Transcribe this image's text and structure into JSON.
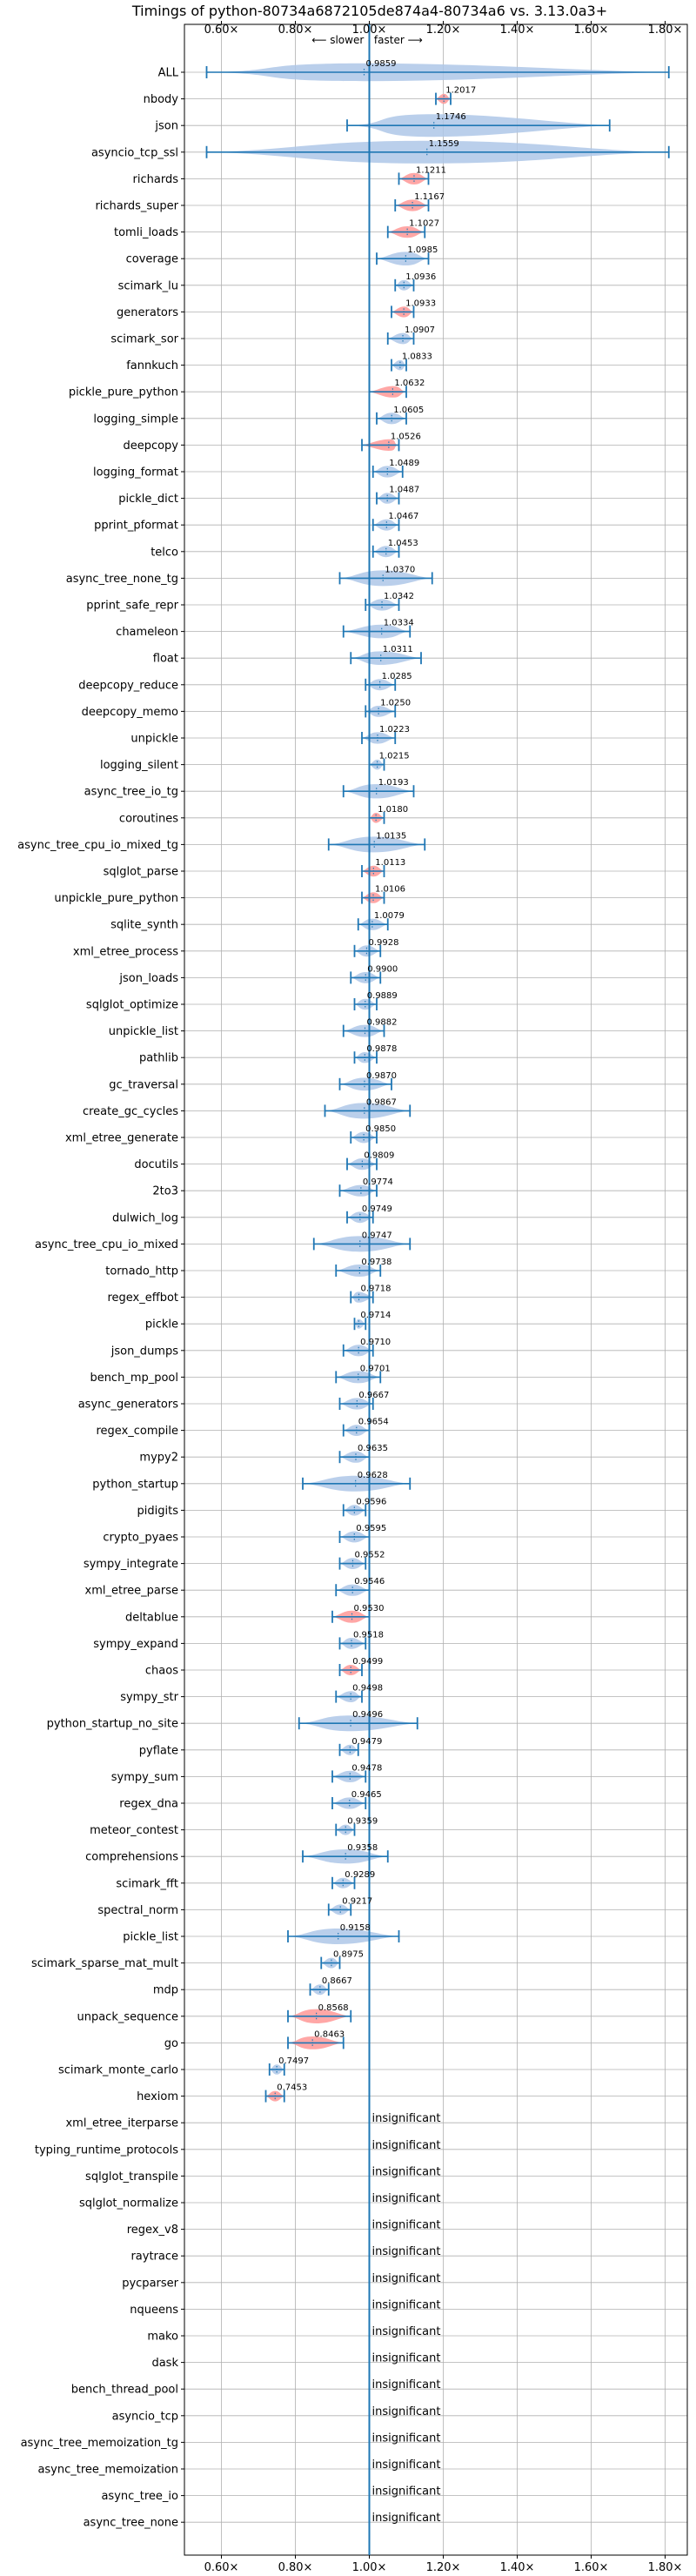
{
  "colors": {
    "accent": "#1f77b4",
    "violin_fill": "#aec7e8",
    "significant_fill": "#ff9896",
    "grid": "#b0b0b0"
  },
  "chart_data": {
    "type": "violin",
    "title": "Timings of python-80734a6872105de874a4-80734a6 vs. 3.13.0a3+",
    "subtitle": "⟵ slower | faster ⟶",
    "x_ticks": [
      0.6,
      0.8,
      1.0,
      1.2,
      1.4,
      1.6,
      1.8
    ],
    "x_tick_labels": [
      "0.60×",
      "0.80×",
      "1.00×",
      "1.20×",
      "1.40×",
      "1.60×",
      "1.80×"
    ],
    "xlim": [
      0.5,
      1.86
    ],
    "grid": true,
    "reference_line": 1.0,
    "insignificant_text": "insignificant",
    "benchmarks": [
      {
        "name": "ALL",
        "value": 0.9859,
        "label": "0.9859",
        "lo": 0.56,
        "hi": 1.81,
        "spread": 0.13,
        "sig": false
      },
      {
        "name": "nbody",
        "value": 1.2017,
        "label": "1.2017",
        "lo": 1.18,
        "hi": 1.22,
        "spread": 0.02,
        "sig": true
      },
      {
        "name": "json",
        "value": 1.1746,
        "label": "1.1746",
        "lo": 0.94,
        "hi": 1.65,
        "spread": 0.35,
        "sig": false
      },
      {
        "name": "asyncio_tcp_ssl",
        "value": 1.1559,
        "label": "1.1559",
        "lo": 0.56,
        "hi": 1.81,
        "spread": 0.6,
        "sig": false
      },
      {
        "name": "richards",
        "value": 1.1211,
        "label": "1.1211",
        "lo": 1.08,
        "hi": 1.16,
        "spread": 0.04,
        "sig": true
      },
      {
        "name": "richards_super",
        "value": 1.1167,
        "label": "1.1167",
        "lo": 1.07,
        "hi": 1.16,
        "spread": 0.04,
        "sig": true
      },
      {
        "name": "tomli_loads",
        "value": 1.1027,
        "label": "1.1027",
        "lo": 1.05,
        "hi": 1.15,
        "spread": 0.04,
        "sig": true
      },
      {
        "name": "coverage",
        "value": 1.0985,
        "label": "1.0985",
        "lo": 1.02,
        "hi": 1.16,
        "spread": 0.07,
        "sig": false
      },
      {
        "name": "scimark_lu",
        "value": 1.0936,
        "label": "1.0936",
        "lo": 1.07,
        "hi": 1.12,
        "spread": 0.025,
        "sig": false
      },
      {
        "name": "generators",
        "value": 1.0933,
        "label": "1.0933",
        "lo": 1.06,
        "hi": 1.12,
        "spread": 0.03,
        "sig": true
      },
      {
        "name": "scimark_sor",
        "value": 1.0907,
        "label": "1.0907",
        "lo": 1.05,
        "hi": 1.12,
        "spread": 0.035,
        "sig": false
      },
      {
        "name": "fannkuch",
        "value": 1.0833,
        "label": "1.0833",
        "lo": 1.06,
        "hi": 1.1,
        "spread": 0.02,
        "sig": false
      },
      {
        "name": "pickle_pure_python",
        "value": 1.0632,
        "label": "1.0632",
        "lo": 1.0,
        "hi": 1.1,
        "spread": 0.04,
        "sig": true
      },
      {
        "name": "logging_simple",
        "value": 1.0605,
        "label": "1.0605",
        "lo": 1.02,
        "hi": 1.1,
        "spread": 0.04,
        "sig": false
      },
      {
        "name": "deepcopy",
        "value": 1.0526,
        "label": "1.0526",
        "lo": 0.98,
        "hi": 1.08,
        "spread": 0.04,
        "sig": true
      },
      {
        "name": "logging_format",
        "value": 1.0489,
        "label": "1.0489",
        "lo": 1.01,
        "hi": 1.09,
        "spread": 0.04,
        "sig": false
      },
      {
        "name": "pickle_dict",
        "value": 1.0487,
        "label": "1.0487",
        "lo": 1.02,
        "hi": 1.08,
        "spread": 0.03,
        "sig": false
      },
      {
        "name": "pprint_pformat",
        "value": 1.0467,
        "label": "1.0467",
        "lo": 1.01,
        "hi": 1.08,
        "spread": 0.035,
        "sig": false
      },
      {
        "name": "telco",
        "value": 1.0453,
        "label": "1.0453",
        "lo": 1.01,
        "hi": 1.08,
        "spread": 0.035,
        "sig": false
      },
      {
        "name": "async_tree_none_tg",
        "value": 1.037,
        "label": "1.0370",
        "lo": 0.92,
        "hi": 1.17,
        "spread": 0.1,
        "sig": false
      },
      {
        "name": "pprint_safe_repr",
        "value": 1.0342,
        "label": "1.0342",
        "lo": 0.99,
        "hi": 1.08,
        "spread": 0.04,
        "sig": false
      },
      {
        "name": "chameleon",
        "value": 1.0334,
        "label": "1.0334",
        "lo": 0.93,
        "hi": 1.11,
        "spread": 0.07,
        "sig": false
      },
      {
        "name": "float",
        "value": 1.0311,
        "label": "1.0311",
        "lo": 0.95,
        "hi": 1.14,
        "spread": 0.07,
        "sig": false
      },
      {
        "name": "deepcopy_reduce",
        "value": 1.0285,
        "label": "1.0285",
        "lo": 0.99,
        "hi": 1.07,
        "spread": 0.035,
        "sig": false
      },
      {
        "name": "deepcopy_memo",
        "value": 1.025,
        "label": "1.0250",
        "lo": 0.99,
        "hi": 1.07,
        "spread": 0.035,
        "sig": false
      },
      {
        "name": "unpickle",
        "value": 1.0223,
        "label": "1.0223",
        "lo": 0.98,
        "hi": 1.07,
        "spread": 0.04,
        "sig": false
      },
      {
        "name": "logging_silent",
        "value": 1.0215,
        "label": "1.0215",
        "lo": 1.0,
        "hi": 1.04,
        "spread": 0.02,
        "sig": false
      },
      {
        "name": "async_tree_io_tg",
        "value": 1.0193,
        "label": "1.0193",
        "lo": 0.93,
        "hi": 1.12,
        "spread": 0.08,
        "sig": false
      },
      {
        "name": "coroutines",
        "value": 1.018,
        "label": "1.0180",
        "lo": 1.0,
        "hi": 1.04,
        "spread": 0.02,
        "sig": true
      },
      {
        "name": "async_tree_cpu_io_mixed_tg",
        "value": 1.0135,
        "label": "1.0135",
        "lo": 0.89,
        "hi": 1.15,
        "spread": 0.1,
        "sig": false
      },
      {
        "name": "sqlglot_parse",
        "value": 1.0113,
        "label": "1.0113",
        "lo": 0.98,
        "hi": 1.04,
        "spread": 0.03,
        "sig": true
      },
      {
        "name": "unpickle_pure_python",
        "value": 1.0106,
        "label": "1.0106",
        "lo": 0.98,
        "hi": 1.04,
        "spread": 0.03,
        "sig": true
      },
      {
        "name": "sqlite_synth",
        "value": 1.0079,
        "label": "1.0079",
        "lo": 0.97,
        "hi": 1.05,
        "spread": 0.04,
        "sig": false
      },
      {
        "name": "xml_etree_process",
        "value": 0.9928,
        "label": "0.9928",
        "lo": 0.96,
        "hi": 1.03,
        "spread": 0.035,
        "sig": false
      },
      {
        "name": "json_loads",
        "value": 0.99,
        "label": "0.9900",
        "lo": 0.95,
        "hi": 1.03,
        "spread": 0.035,
        "sig": false
      },
      {
        "name": "sqlglot_optimize",
        "value": 0.9889,
        "label": "0.9889",
        "lo": 0.96,
        "hi": 1.02,
        "spread": 0.03,
        "sig": false
      },
      {
        "name": "unpickle_list",
        "value": 0.9882,
        "label": "0.9882",
        "lo": 0.93,
        "hi": 1.04,
        "spread": 0.05,
        "sig": false
      },
      {
        "name": "pathlib",
        "value": 0.9878,
        "label": "0.9878",
        "lo": 0.96,
        "hi": 1.02,
        "spread": 0.03,
        "sig": false
      },
      {
        "name": "gc_traversal",
        "value": 0.987,
        "label": "0.9870",
        "lo": 0.92,
        "hi": 1.06,
        "spread": 0.06,
        "sig": false
      },
      {
        "name": "create_gc_cycles",
        "value": 0.9867,
        "label": "0.9867",
        "lo": 0.88,
        "hi": 1.11,
        "spread": 0.1,
        "sig": false
      },
      {
        "name": "xml_etree_generate",
        "value": 0.985,
        "label": "0.9850",
        "lo": 0.95,
        "hi": 1.02,
        "spread": 0.035,
        "sig": false
      },
      {
        "name": "docutils",
        "value": 0.9809,
        "label": "0.9809",
        "lo": 0.94,
        "hi": 1.02,
        "spread": 0.04,
        "sig": false
      },
      {
        "name": "2to3",
        "value": 0.9774,
        "label": "0.9774",
        "lo": 0.92,
        "hi": 1.02,
        "spread": 0.04,
        "sig": false
      },
      {
        "name": "dulwich_log",
        "value": 0.9749,
        "label": "0.9749",
        "lo": 0.94,
        "hi": 1.01,
        "spread": 0.035,
        "sig": false
      },
      {
        "name": "async_tree_cpu_io_mixed",
        "value": 0.9747,
        "label": "0.9747",
        "lo": 0.85,
        "hi": 1.11,
        "spread": 0.1,
        "sig": false
      },
      {
        "name": "tornado_http",
        "value": 0.9738,
        "label": "0.9738",
        "lo": 0.91,
        "hi": 1.03,
        "spread": 0.05,
        "sig": false
      },
      {
        "name": "regex_effbot",
        "value": 0.9718,
        "label": "0.9718",
        "lo": 0.95,
        "hi": 1.01,
        "spread": 0.03,
        "sig": false
      },
      {
        "name": "pickle",
        "value": 0.9714,
        "label": "0.9714",
        "lo": 0.96,
        "hi": 0.99,
        "spread": 0.015,
        "sig": false
      },
      {
        "name": "json_dumps",
        "value": 0.971,
        "label": "0.9710",
        "lo": 0.93,
        "hi": 1.01,
        "spread": 0.04,
        "sig": false
      },
      {
        "name": "bench_mp_pool",
        "value": 0.9701,
        "label": "0.9701",
        "lo": 0.91,
        "hi": 1.03,
        "spread": 0.05,
        "sig": false
      },
      {
        "name": "async_generators",
        "value": 0.9667,
        "label": "0.9667",
        "lo": 0.92,
        "hi": 1.01,
        "spread": 0.04,
        "sig": false
      },
      {
        "name": "regex_compile",
        "value": 0.9654,
        "label": "0.9654",
        "lo": 0.93,
        "hi": 1.0,
        "spread": 0.035,
        "sig": false
      },
      {
        "name": "mypy2",
        "value": 0.9635,
        "label": "0.9635",
        "lo": 0.92,
        "hi": 1.0,
        "spread": 0.04,
        "sig": false
      },
      {
        "name": "python_startup",
        "value": 0.9628,
        "label": "0.9628",
        "lo": 0.82,
        "hi": 1.11,
        "spread": 0.1,
        "sig": false
      },
      {
        "name": "pidigits",
        "value": 0.9596,
        "label": "0.9596",
        "lo": 0.93,
        "hi": 0.99,
        "spread": 0.03,
        "sig": false
      },
      {
        "name": "crypto_pyaes",
        "value": 0.9595,
        "label": "0.9595",
        "lo": 0.92,
        "hi": 1.0,
        "spread": 0.035,
        "sig": false
      },
      {
        "name": "sympy_integrate",
        "value": 0.9552,
        "label": "0.9552",
        "lo": 0.92,
        "hi": 0.99,
        "spread": 0.035,
        "sig": false
      },
      {
        "name": "xml_etree_parse",
        "value": 0.9546,
        "label": "0.9546",
        "lo": 0.91,
        "hi": 1.0,
        "spread": 0.04,
        "sig": false
      },
      {
        "name": "deltablue",
        "value": 0.953,
        "label": "0.9530",
        "lo": 0.9,
        "hi": 1.0,
        "spread": 0.05,
        "sig": true
      },
      {
        "name": "sympy_expand",
        "value": 0.9518,
        "label": "0.9518",
        "lo": 0.92,
        "hi": 0.99,
        "spread": 0.035,
        "sig": false
      },
      {
        "name": "chaos",
        "value": 0.9499,
        "label": "0.9499",
        "lo": 0.92,
        "hi": 0.98,
        "spread": 0.025,
        "sig": true
      },
      {
        "name": "sympy_str",
        "value": 0.9498,
        "label": "0.9498",
        "lo": 0.91,
        "hi": 0.98,
        "spread": 0.035,
        "sig": false
      },
      {
        "name": "python_startup_no_site",
        "value": 0.9496,
        "label": "0.9496",
        "lo": 0.81,
        "hi": 1.13,
        "spread": 0.1,
        "sig": false
      },
      {
        "name": "pyflate",
        "value": 0.9479,
        "label": "0.9479",
        "lo": 0.92,
        "hi": 0.97,
        "spread": 0.025,
        "sig": false
      },
      {
        "name": "sympy_sum",
        "value": 0.9478,
        "label": "0.9478",
        "lo": 0.9,
        "hi": 0.99,
        "spread": 0.04,
        "sig": false
      },
      {
        "name": "regex_dna",
        "value": 0.9465,
        "label": "0.9465",
        "lo": 0.9,
        "hi": 0.99,
        "spread": 0.04,
        "sig": false
      },
      {
        "name": "meteor_contest",
        "value": 0.9359,
        "label": "0.9359",
        "lo": 0.91,
        "hi": 0.96,
        "spread": 0.025,
        "sig": false
      },
      {
        "name": "comprehensions",
        "value": 0.9358,
        "label": "0.9358",
        "lo": 0.82,
        "hi": 1.05,
        "spread": 0.08,
        "sig": false
      },
      {
        "name": "scimark_fft",
        "value": 0.9289,
        "label": "0.9289",
        "lo": 0.9,
        "hi": 0.96,
        "spread": 0.025,
        "sig": false
      },
      {
        "name": "spectral_norm",
        "value": 0.9217,
        "label": "0.9217",
        "lo": 0.89,
        "hi": 0.95,
        "spread": 0.025,
        "sig": false
      },
      {
        "name": "pickle_list",
        "value": 0.9158,
        "label": "0.9158",
        "lo": 0.78,
        "hi": 1.08,
        "spread": 0.1,
        "sig": false
      },
      {
        "name": "scimark_sparse_mat_mult",
        "value": 0.8975,
        "label": "0.8975",
        "lo": 0.87,
        "hi": 0.92,
        "spread": 0.025,
        "sig": false
      },
      {
        "name": "mdp",
        "value": 0.8667,
        "label": "0.8667",
        "lo": 0.84,
        "hi": 0.89,
        "spread": 0.025,
        "sig": false
      },
      {
        "name": "unpack_sequence",
        "value": 0.8568,
        "label": "0.8568",
        "lo": 0.78,
        "hi": 0.95,
        "spread": 0.08,
        "sig": true
      },
      {
        "name": "go",
        "value": 0.8463,
        "label": "0.8463",
        "lo": 0.78,
        "hi": 0.93,
        "spread": 0.06,
        "sig": true
      },
      {
        "name": "scimark_monte_carlo",
        "value": 0.7497,
        "label": "0.7497",
        "lo": 0.73,
        "hi": 0.77,
        "spread": 0.02,
        "sig": false
      },
      {
        "name": "hexiom",
        "value": 0.7453,
        "label": "0.7453",
        "lo": 0.72,
        "hi": 0.77,
        "spread": 0.025,
        "sig": true
      },
      {
        "name": "xml_etree_iterparse",
        "insignificant": true
      },
      {
        "name": "typing_runtime_protocols",
        "insignificant": true
      },
      {
        "name": "sqlglot_transpile",
        "insignificant": true
      },
      {
        "name": "sqlglot_normalize",
        "insignificant": true
      },
      {
        "name": "regex_v8",
        "insignificant": true
      },
      {
        "name": "raytrace",
        "insignificant": true
      },
      {
        "name": "pycparser",
        "insignificant": true
      },
      {
        "name": "nqueens",
        "insignificant": true
      },
      {
        "name": "mako",
        "insignificant": true
      },
      {
        "name": "dask",
        "insignificant": true
      },
      {
        "name": "bench_thread_pool",
        "insignificant": true
      },
      {
        "name": "asyncio_tcp",
        "insignificant": true
      },
      {
        "name": "async_tree_memoization_tg",
        "insignificant": true
      },
      {
        "name": "async_tree_memoization",
        "insignificant": true
      },
      {
        "name": "async_tree_io",
        "insignificant": true
      },
      {
        "name": "async_tree_none",
        "insignificant": true
      }
    ]
  }
}
